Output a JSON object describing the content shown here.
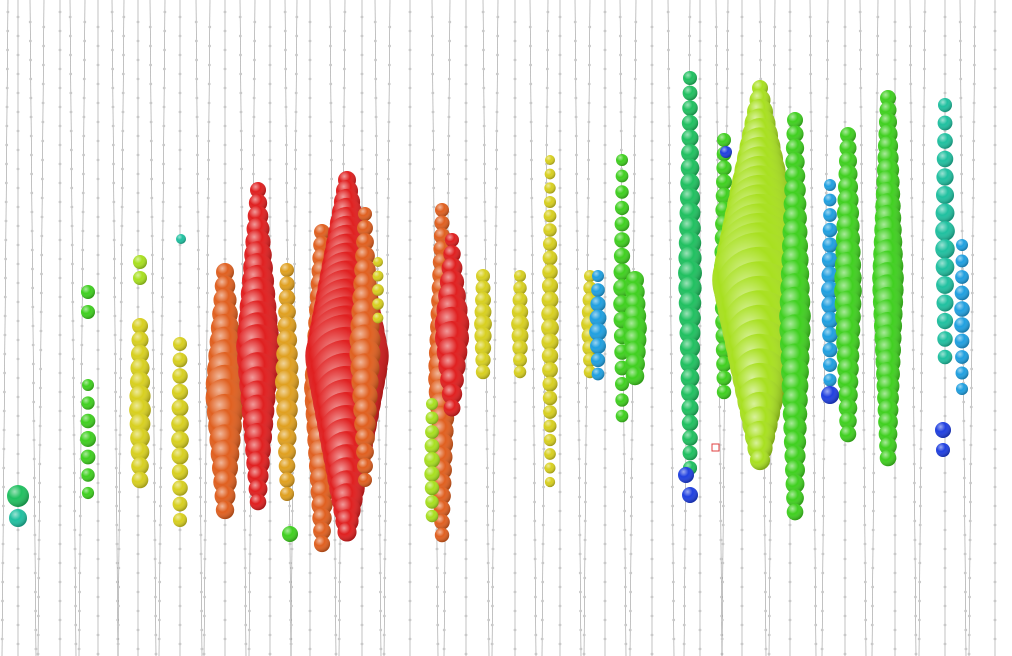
{
  "event_display": {
    "colors": {
      "background": "#ffffff",
      "string_line": "#9a9a9a",
      "dom_node": "#c8c8c8",
      "vertex_marker": "#e04040"
    },
    "hit_time_scale": [
      "#e02020",
      "#e06020",
      "#e0a020",
      "#d8d020",
      "#a8e020",
      "#40d020",
      "#20c060",
      "#20c0a0",
      "#20a0e0",
      "#2040e0"
    ],
    "strings_count": 48
  }
}
